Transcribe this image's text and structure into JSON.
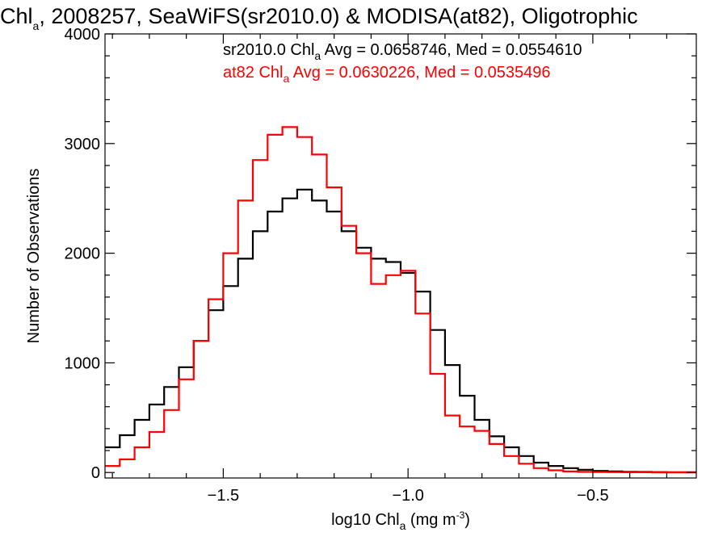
{
  "chart_data": {
    "type": "line",
    "title": {
      "pre": "Chl",
      "sub": "a",
      "post": ", 2008257, SeaWiFS(sr2010.0) & MODISA(at82), Oligotrophic"
    },
    "xlabel": {
      "pre": "log10 Chl",
      "sub": "a",
      "mid": " (mg m",
      "sup": "-3",
      "post": ")"
    },
    "ylabel": "Number of Observations",
    "xlim": [
      -1.82,
      -0.22
    ],
    "ylim": [
      -50,
      4000
    ],
    "x_ticks": [
      {
        "value": -1.5,
        "label": "−1.5"
      },
      {
        "value": -1.0,
        "label": "−1.0"
      },
      {
        "value": -0.5,
        "label": "−0.5"
      }
    ],
    "y_ticks": [
      {
        "value": 0,
        "label": "0"
      },
      {
        "value": 1000,
        "label": "1000"
      },
      {
        "value": 2000,
        "label": "2000"
      },
      {
        "value": 3000,
        "label": "3000"
      },
      {
        "value": 4000,
        "label": "4000"
      }
    ],
    "grid": false,
    "legend_position": "top-right",
    "series": [
      {
        "name": "sr2010.0",
        "color": "#000000",
        "label_pre": "sr2010.0 Chl",
        "label_sub": "a",
        "label_post": " Avg = 0.0658746, Med = 0.0554610",
        "x": [
          -1.82,
          -1.78,
          -1.74,
          -1.7,
          -1.66,
          -1.62,
          -1.58,
          -1.54,
          -1.5,
          -1.46,
          -1.42,
          -1.38,
          -1.34,
          -1.3,
          -1.26,
          -1.22,
          -1.18,
          -1.14,
          -1.1,
          -1.06,
          -1.02,
          -0.98,
          -0.94,
          -0.9,
          -0.86,
          -0.82,
          -0.78,
          -0.74,
          -0.7,
          -0.66,
          -0.62,
          -0.58,
          -0.54,
          -0.5,
          -0.46,
          -0.42,
          -0.38,
          -0.34,
          -0.3,
          -0.26,
          -0.22
        ],
        "y": [
          230,
          340,
          480,
          620,
          780,
          960,
          1200,
          1480,
          1700,
          1950,
          2200,
          2380,
          2500,
          2580,
          2480,
          2380,
          2200,
          2050,
          1950,
          1920,
          1820,
          1650,
          1300,
          980,
          700,
          480,
          330,
          230,
          150,
          90,
          60,
          40,
          25,
          15,
          10,
          6,
          5,
          4,
          3,
          2,
          2
        ]
      },
      {
        "name": "at82",
        "color": "#ff0000",
        "label_pre": "at82 Chl",
        "label_sub": "a",
        "label_post": " Avg = 0.0630226, Med = 0.0535496",
        "x": [
          -1.82,
          -1.78,
          -1.74,
          -1.7,
          -1.66,
          -1.62,
          -1.58,
          -1.54,
          -1.5,
          -1.46,
          -1.42,
          -1.38,
          -1.34,
          -1.3,
          -1.26,
          -1.22,
          -1.18,
          -1.14,
          -1.1,
          -1.06,
          -1.02,
          -0.98,
          -0.94,
          -0.9,
          -0.86,
          -0.82,
          -0.78,
          -0.74,
          -0.7,
          -0.66,
          -0.62,
          -0.58,
          -0.54,
          -0.5,
          -0.46,
          -0.42,
          -0.38,
          -0.34,
          -0.3,
          -0.26,
          -0.22
        ],
        "y": [
          60,
          120,
          230,
          370,
          570,
          850,
          1200,
          1580,
          2000,
          2480,
          2850,
          3080,
          3150,
          3060,
          2900,
          2600,
          2250,
          2000,
          1720,
          1800,
          1840,
          1450,
          900,
          520,
          420,
          380,
          260,
          150,
          80,
          40,
          20,
          10,
          6,
          4,
          3,
          2,
          2,
          1,
          1,
          1,
          1
        ]
      }
    ]
  }
}
